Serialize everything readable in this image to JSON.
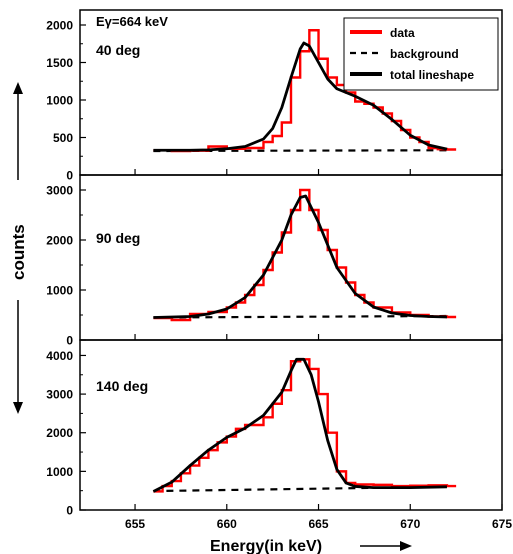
{
  "figure": {
    "shared_ylabel": "counts",
    "shared_xlabel": "Energy(in keV)",
    "gamma_energy_label": "Eγ=664 keV",
    "legend": {
      "data": "data",
      "background": "background",
      "total": "total lineshape"
    },
    "colors": {
      "data": "#ff0000",
      "fit": "#000000",
      "background": "#000000"
    }
  },
  "chart_data": [
    {
      "type": "line",
      "panel_label": "40 deg",
      "xlim": [
        652,
        675
      ],
      "ylim": [
        0,
        2200
      ],
      "yticks": [
        0,
        500,
        1000,
        1500,
        2000
      ],
      "xticks": [
        655,
        660,
        665,
        670,
        675
      ],
      "legend_position": "top-right",
      "data_histogram": [
        [
          656,
          330
        ],
        [
          657,
          320
        ],
        [
          658,
          325
        ],
        [
          659,
          380
        ],
        [
          660,
          350
        ],
        [
          661,
          360
        ],
        [
          662,
          440
        ],
        [
          662.5,
          520
        ],
        [
          663,
          700
        ],
        [
          663.5,
          1300
        ],
        [
          664,
          1650
        ],
        [
          664.5,
          1930
        ],
        [
          665,
          1550
        ],
        [
          665.5,
          1300
        ],
        [
          666,
          1200
        ],
        [
          666.5,
          1100
        ],
        [
          667,
          980
        ],
        [
          667.5,
          950
        ],
        [
          668,
          900
        ],
        [
          668.5,
          820
        ],
        [
          669,
          720
        ],
        [
          669.5,
          600
        ],
        [
          670,
          500
        ],
        [
          670.5,
          440
        ],
        [
          671,
          360
        ],
        [
          671.5,
          345
        ],
        [
          672,
          340
        ]
      ],
      "total_lineshape": [
        [
          656,
          330
        ],
        [
          658,
          330
        ],
        [
          659,
          335
        ],
        [
          660,
          350
        ],
        [
          661,
          380
        ],
        [
          662,
          480
        ],
        [
          662.5,
          620
        ],
        [
          663,
          900
        ],
        [
          663.5,
          1300
        ],
        [
          664,
          1680
        ],
        [
          664.2,
          1760
        ],
        [
          664.5,
          1720
        ],
        [
          665,
          1500
        ],
        [
          665.5,
          1280
        ],
        [
          666,
          1150
        ],
        [
          667,
          1050
        ],
        [
          668,
          930
        ],
        [
          669,
          740
        ],
        [
          670,
          530
        ],
        [
          671,
          400
        ],
        [
          672,
          345
        ]
      ],
      "background": [
        [
          656,
          320
        ],
        [
          672,
          330
        ]
      ]
    },
    {
      "type": "line",
      "panel_label": "90 deg",
      "xlim": [
        652,
        675
      ],
      "ylim": [
        0,
        3300
      ],
      "yticks": [
        0,
        1000,
        2000,
        3000
      ],
      "xticks": [
        655,
        660,
        665,
        670,
        675
      ],
      "data_histogram": [
        [
          656,
          440
        ],
        [
          657,
          400
        ],
        [
          658,
          520
        ],
        [
          659,
          560
        ],
        [
          660,
          650
        ],
        [
          660.5,
          750
        ],
        [
          661,
          900
        ],
        [
          661.5,
          1100
        ],
        [
          662,
          1400
        ],
        [
          662.5,
          1750
        ],
        [
          663,
          2150
        ],
        [
          663.5,
          2600
        ],
        [
          664,
          3000
        ],
        [
          664.5,
          2600
        ],
        [
          665,
          2200
        ],
        [
          665.5,
          1800
        ],
        [
          666,
          1450
        ],
        [
          666.5,
          1150
        ],
        [
          667,
          900
        ],
        [
          667.5,
          750
        ],
        [
          668,
          650
        ],
        [
          669,
          550
        ],
        [
          670,
          500
        ],
        [
          671,
          470
        ],
        [
          672,
          460
        ]
      ],
      "total_lineshape": [
        [
          656,
          450
        ],
        [
          658,
          470
        ],
        [
          659,
          520
        ],
        [
          660,
          620
        ],
        [
          661,
          850
        ],
        [
          662,
          1300
        ],
        [
          663,
          2000
        ],
        [
          663.5,
          2500
        ],
        [
          664,
          2850
        ],
        [
          664.3,
          2880
        ],
        [
          665,
          2350
        ],
        [
          666,
          1450
        ],
        [
          667,
          930
        ],
        [
          668,
          660
        ],
        [
          669,
          540
        ],
        [
          670,
          490
        ],
        [
          671,
          470
        ],
        [
          672,
          460
        ]
      ],
      "background": [
        [
          656,
          450
        ],
        [
          672,
          480
        ]
      ]
    },
    {
      "type": "line",
      "panel_label": "140 deg",
      "xlim": [
        652,
        675
      ],
      "ylim": [
        0,
        4400
      ],
      "yticks": [
        0,
        1000,
        2000,
        3000,
        4000
      ],
      "xticks": [
        655,
        660,
        665,
        670,
        675
      ],
      "xticklabels": [
        "655",
        "660",
        "665",
        "670",
        "675"
      ],
      "data_histogram": [
        [
          656,
          480
        ],
        [
          656.5,
          620
        ],
        [
          657,
          750
        ],
        [
          657.5,
          950
        ],
        [
          658,
          1150
        ],
        [
          658.5,
          1350
        ],
        [
          659,
          1550
        ],
        [
          659.5,
          1750
        ],
        [
          660,
          1900
        ],
        [
          660.5,
          2100
        ],
        [
          661,
          2200
        ],
        [
          661.5,
          2200
        ],
        [
          662,
          2400
        ],
        [
          662.5,
          2750
        ],
        [
          663,
          3100
        ],
        [
          663.5,
          3850
        ],
        [
          664,
          3900
        ],
        [
          664.5,
          3650
        ],
        [
          665,
          3000
        ],
        [
          665.5,
          2000
        ],
        [
          666,
          1000
        ],
        [
          666.5,
          700
        ],
        [
          667,
          660
        ],
        [
          668,
          650
        ],
        [
          669,
          620
        ],
        [
          670,
          630
        ],
        [
          671,
          640
        ],
        [
          672,
          620
        ]
      ],
      "total_lineshape": [
        [
          656,
          480
        ],
        [
          657,
          720
        ],
        [
          658,
          1150
        ],
        [
          659,
          1550
        ],
        [
          660,
          1880
        ],
        [
          661,
          2120
        ],
        [
          662,
          2450
        ],
        [
          663,
          3050
        ],
        [
          663.5,
          3600
        ],
        [
          663.8,
          3900
        ],
        [
          664.2,
          3900
        ],
        [
          664.6,
          3500
        ],
        [
          665,
          2800
        ],
        [
          665.5,
          1800
        ],
        [
          666,
          1050
        ],
        [
          666.5,
          700
        ],
        [
          667,
          610
        ],
        [
          668,
          580
        ],
        [
          670,
          580
        ],
        [
          672,
          600
        ]
      ],
      "background": [
        [
          656,
          490
        ],
        [
          672,
          600
        ]
      ]
    }
  ]
}
